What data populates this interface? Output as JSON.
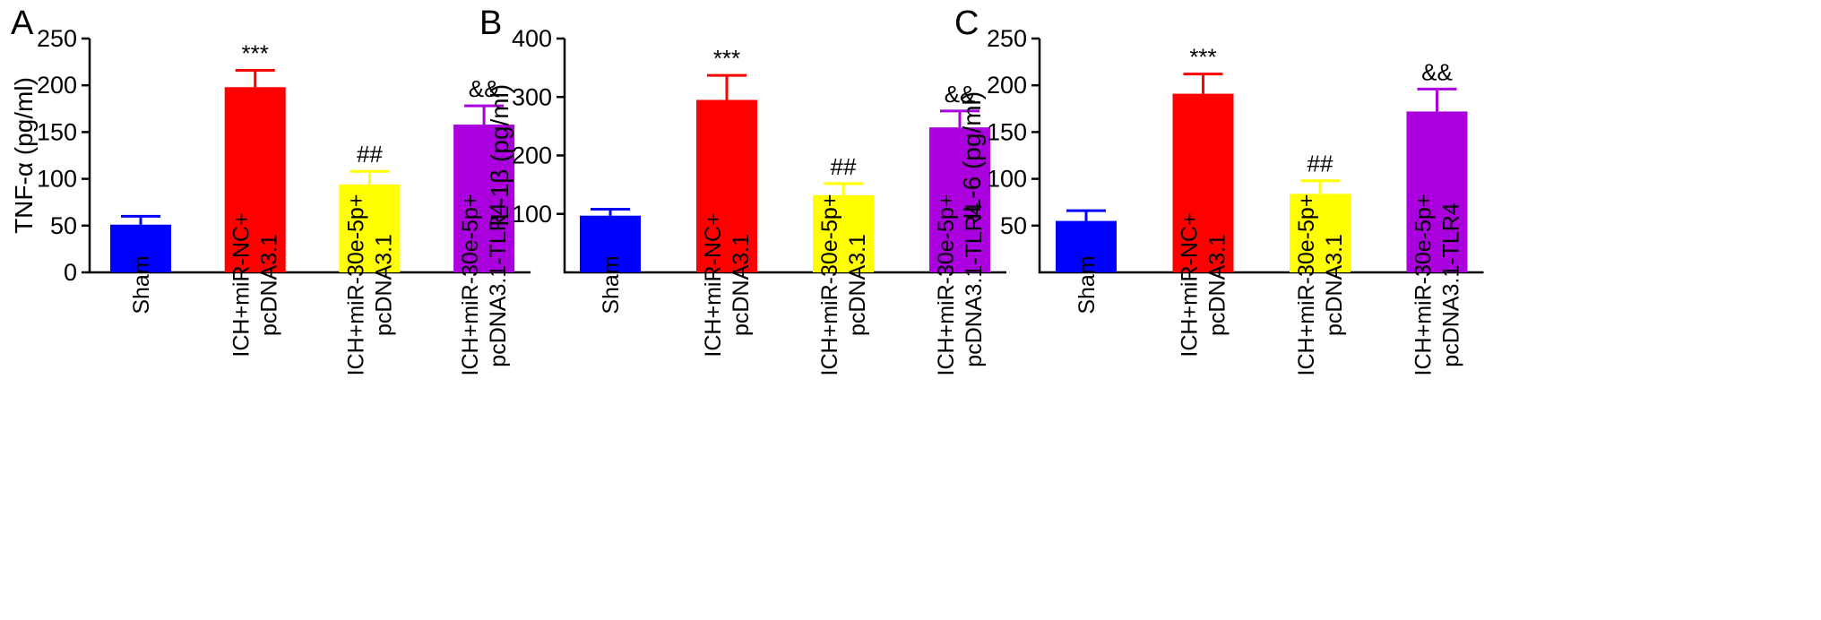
{
  "chart_data": [
    {
      "panel": "A",
      "type": "bar",
      "ylabel": "TNF-α (pg/ml)",
      "ylim": [
        0,
        250
      ],
      "yticks": [
        0,
        50,
        100,
        150,
        200,
        250
      ],
      "categories": [
        [
          "Sham"
        ],
        [
          "ICH+miR-NC+",
          "pcDNA3.1"
        ],
        [
          "ICH+miR-30e-5p+",
          "pcDNA3.1"
        ],
        [
          "ICH+miR-30e-5p+",
          "pcDNA3.1-TLR4"
        ]
      ],
      "values": [
        51,
        198,
        94,
        158
      ],
      "errors": [
        9,
        18,
        14,
        20
      ],
      "colors": [
        "#0000ff",
        "#ff0000",
        "#ffff00",
        "#aa00dd"
      ],
      "annotations": [
        "",
        "***",
        "##",
        "&&"
      ]
    },
    {
      "panel": "B",
      "type": "bar",
      "ylabel": "IL-1β (pg/ml)",
      "ylim": [
        0,
        400
      ],
      "yticks": [
        100,
        200,
        300,
        400
      ],
      "categories": [
        [
          "Sham"
        ],
        [
          "ICH+miR-NC+",
          "pcDNA3.1"
        ],
        [
          "ICH+miR-30e-5p+",
          "pcDNA3.1"
        ],
        [
          "ICH+miR-30e-5p+",
          "pcDNA3.1-TLR4"
        ]
      ],
      "values": [
        97,
        295,
        132,
        248
      ],
      "errors": [
        11,
        42,
        20,
        28
      ],
      "colors": [
        "#0000ff",
        "#ff0000",
        "#ffff00",
        "#aa00dd"
      ],
      "annotations": [
        "",
        "***",
        "##",
        "&&"
      ]
    },
    {
      "panel": "C",
      "type": "bar",
      "ylabel": "IL-6 (pg/ml)",
      "ylim": [
        0,
        250
      ],
      "yticks": [
        50,
        100,
        150,
        200,
        250
      ],
      "categories": [
        [
          "Sham"
        ],
        [
          "ICH+miR-NC+",
          "pcDNA3.1"
        ],
        [
          "ICH+miR-30e-5p+",
          "pcDNA3.1"
        ],
        [
          "ICH+miR-30e-5p+",
          "pcDNA3.1-TLR4"
        ]
      ],
      "values": [
        55,
        191,
        84,
        172
      ],
      "errors": [
        11,
        21,
        14,
        24
      ],
      "colors": [
        "#0000ff",
        "#ff0000",
        "#ffff00",
        "#aa00dd"
      ],
      "annotations": [
        "",
        "***",
        "##",
        "&&"
      ]
    }
  ]
}
